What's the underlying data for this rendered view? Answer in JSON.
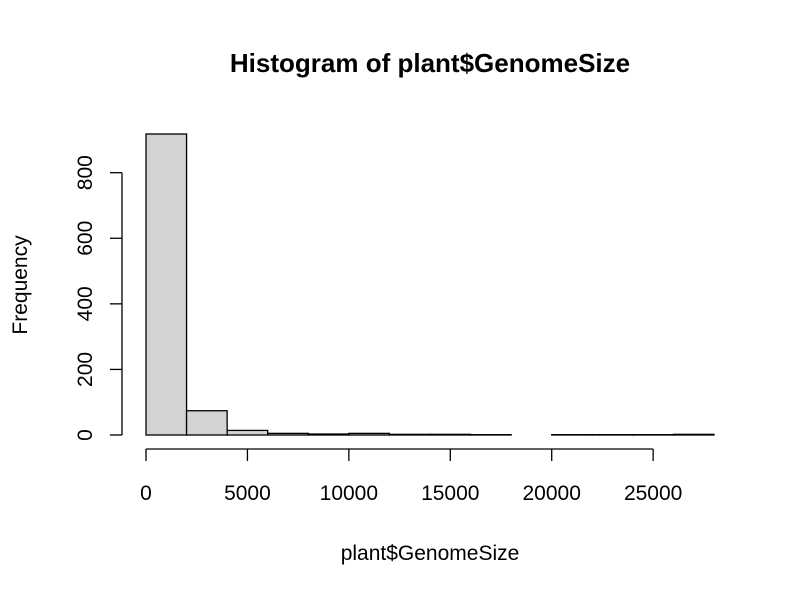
{
  "chart_data": {
    "type": "bar",
    "title": "Histogram of plant$GenomeSize",
    "xlabel": "plant$GenomeSize",
    "ylabel": "Frequency",
    "bar_color": "#d3d3d3",
    "bin_edges": [
      0,
      2000,
      4000,
      6000,
      8000,
      10000,
      12000,
      14000,
      16000,
      18000,
      20000,
      22000,
      24000,
      26000,
      28000
    ],
    "values": [
      918,
      74,
      14,
      5,
      3,
      5,
      2,
      2,
      1,
      0,
      1,
      1,
      1,
      2
    ],
    "xlim": [
      0,
      28000
    ],
    "ylim": [
      0,
      918
    ],
    "x_ticks": [
      0,
      5000,
      10000,
      15000,
      20000,
      25000
    ],
    "x_tick_labels": [
      "0",
      "5000",
      "10000",
      "15000",
      "20000",
      "25000"
    ],
    "y_ticks": [
      0,
      200,
      400,
      600,
      800
    ],
    "y_tick_labels": [
      "0",
      "200",
      "400",
      "600",
      "800"
    ],
    "grid": false
  }
}
